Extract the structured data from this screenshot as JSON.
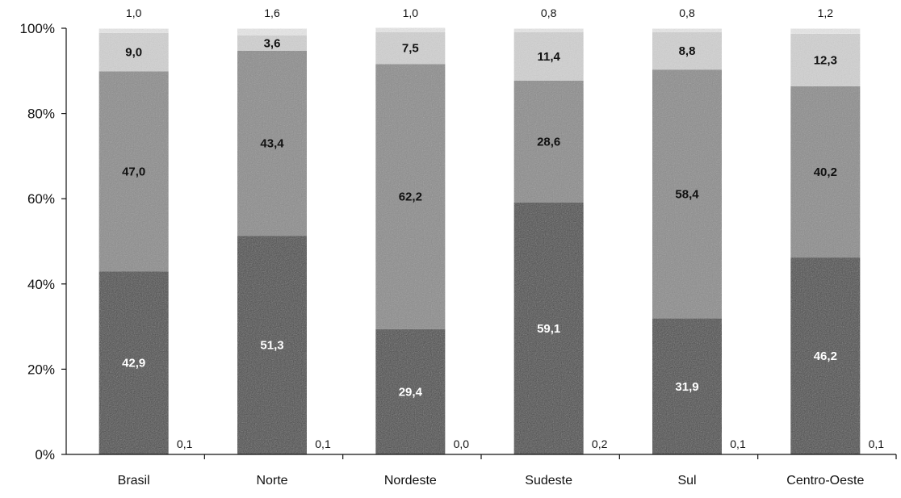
{
  "chart_data": {
    "type": "bar",
    "stacked": true,
    "categories": [
      "Brasil",
      "Norte",
      "Nordeste",
      "Sudeste",
      "Sul",
      "Centro-Oeste"
    ],
    "series": [
      {
        "values": [
          42.9,
          51.3,
          29.4,
          59.1,
          31.9,
          46.2
        ],
        "color": "#4a4a4a",
        "label_color": "#ffffff"
      },
      {
        "values": [
          47.0,
          43.4,
          62.2,
          28.6,
          58.4,
          40.2
        ],
        "color": "#8c8c8c",
        "label_color": "#111111"
      },
      {
        "values": [
          9.0,
          3.6,
          7.5,
          11.4,
          8.8,
          12.3
        ],
        "color": "#d2d2d2",
        "label_color": "#111111"
      },
      {
        "values": [
          1.0,
          1.6,
          1.0,
          0.8,
          0.8,
          1.2
        ],
        "color": "#ffffff",
        "label_color": "#111111"
      },
      {
        "values": [
          0.1,
          0.1,
          0.0,
          0.2,
          0.1,
          0.1
        ],
        "color": "#ffffff",
        "label_color": "#111111"
      }
    ],
    "top_labels": [
      "1,0",
      "1,6",
      "1,0",
      "0,8",
      "0,8",
      "1,2"
    ],
    "bottom_right_labels": [
      "0,1",
      "0,1",
      "0,0",
      "0,2",
      "0,1",
      "0,1"
    ],
    "segment_labels": [
      [
        "42,9",
        "47,0",
        "9,0"
      ],
      [
        "51,3",
        "43,4",
        "3,6"
      ],
      [
        "29,4",
        "62,2",
        "7,5"
      ],
      [
        "59,1",
        "28,6",
        "11,4"
      ],
      [
        "31,9",
        "58,4",
        "8,8"
      ],
      [
        "46,2",
        "40,2",
        "12,3"
      ]
    ],
    "y_ticks": [
      "0%",
      "20%",
      "40%",
      "60%",
      "80%",
      "100%"
    ],
    "ylim": [
      0,
      100
    ],
    "grid": false,
    "legend": "none"
  }
}
